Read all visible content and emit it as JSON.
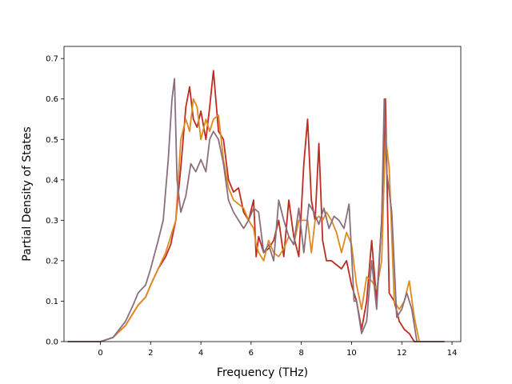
{
  "chart_data": {
    "type": "line",
    "title": "",
    "xlabel": "Frequency (THz)",
    "ylabel": "Partial Density of States",
    "xlim": [
      -1.45,
      14.35
    ],
    "ylim": [
      0.0,
      0.73
    ],
    "xticks": [
      0,
      2,
      4,
      6,
      8,
      10,
      12,
      14
    ],
    "yticks": [
      0.0,
      0.1,
      0.2,
      0.3,
      0.4,
      0.5,
      0.6,
      0.7
    ],
    "grid": false,
    "legend": "none",
    "series": [
      {
        "color": "#bf2b22",
        "x": [
          -1.3,
          0,
          0.5,
          1.0,
          1.3,
          1.5,
          1.8,
          2.0,
          2.3,
          2.6,
          2.8,
          3.0,
          3.2,
          3.4,
          3.55,
          3.7,
          3.85,
          4.0,
          4.2,
          4.35,
          4.5,
          4.7,
          4.9,
          5.1,
          5.3,
          5.5,
          5.7,
          5.9,
          6.1,
          6.2,
          6.3,
          6.5,
          6.7,
          6.9,
          7.1,
          7.3,
          7.5,
          7.7,
          7.9,
          8.1,
          8.25,
          8.4,
          8.55,
          8.7,
          8.85,
          9.0,
          9.2,
          9.4,
          9.6,
          9.8,
          10.0,
          10.2,
          10.4,
          10.6,
          10.8,
          11.0,
          11.2,
          11.35,
          11.5,
          11.7,
          11.9,
          12.1,
          12.3,
          12.5,
          12.7,
          13.0,
          13.7
        ],
        "y": [
          0,
          0,
          0.01,
          0.04,
          0.07,
          0.09,
          0.11,
          0.14,
          0.18,
          0.21,
          0.24,
          0.3,
          0.43,
          0.58,
          0.63,
          0.55,
          0.53,
          0.57,
          0.5,
          0.58,
          0.67,
          0.52,
          0.5,
          0.4,
          0.37,
          0.38,
          0.32,
          0.3,
          0.35,
          0.21,
          0.26,
          0.22,
          0.23,
          0.25,
          0.3,
          0.21,
          0.35,
          0.26,
          0.21,
          0.44,
          0.55,
          0.35,
          0.3,
          0.49,
          0.25,
          0.2,
          0.2,
          0.19,
          0.18,
          0.2,
          0.14,
          0.1,
          0.03,
          0.1,
          0.25,
          0.1,
          0.3,
          0.6,
          0.12,
          0.1,
          0.05,
          0.03,
          0.02,
          0.0,
          0,
          0,
          0
        ]
      },
      {
        "color": "#e08a1e",
        "x": [
          -1.3,
          0,
          0.5,
          1.0,
          1.3,
          1.5,
          1.8,
          2.0,
          2.3,
          2.6,
          2.8,
          3.0,
          3.2,
          3.4,
          3.55,
          3.7,
          3.85,
          4.0,
          4.2,
          4.35,
          4.5,
          4.7,
          4.9,
          5.1,
          5.3,
          5.5,
          5.7,
          5.9,
          6.1,
          6.2,
          6.3,
          6.5,
          6.7,
          6.9,
          7.1,
          7.3,
          7.5,
          7.7,
          7.9,
          8.1,
          8.25,
          8.4,
          8.55,
          8.7,
          8.85,
          9.0,
          9.2,
          9.4,
          9.6,
          9.8,
          10.0,
          10.2,
          10.4,
          10.6,
          10.8,
          11.0,
          11.2,
          11.35,
          11.5,
          11.7,
          11.9,
          12.1,
          12.3,
          12.5,
          12.7,
          13.0,
          13.7
        ],
        "y": [
          0,
          0,
          0.01,
          0.04,
          0.07,
          0.09,
          0.11,
          0.14,
          0.18,
          0.22,
          0.26,
          0.3,
          0.5,
          0.55,
          0.52,
          0.6,
          0.58,
          0.5,
          0.55,
          0.52,
          0.55,
          0.56,
          0.45,
          0.38,
          0.35,
          0.34,
          0.33,
          0.3,
          0.28,
          0.24,
          0.22,
          0.2,
          0.25,
          0.22,
          0.21,
          0.23,
          0.26,
          0.24,
          0.3,
          0.3,
          0.3,
          0.22,
          0.3,
          0.31,
          0.3,
          0.32,
          0.3,
          0.27,
          0.22,
          0.27,
          0.24,
          0.14,
          0.08,
          0.16,
          0.15,
          0.13,
          0.2,
          0.51,
          0.43,
          0.1,
          0.08,
          0.1,
          0.15,
          0.06,
          0,
          0,
          0
        ]
      },
      {
        "color": "#8a6f7e",
        "x": [
          -1.3,
          0,
          0.5,
          1.0,
          1.3,
          1.5,
          1.8,
          2.0,
          2.3,
          2.5,
          2.7,
          2.85,
          2.95,
          3.05,
          3.2,
          3.4,
          3.6,
          3.8,
          4.0,
          4.2,
          4.35,
          4.5,
          4.7,
          4.9,
          5.1,
          5.3,
          5.5,
          5.7,
          5.9,
          6.1,
          6.3,
          6.5,
          6.7,
          6.9,
          7.1,
          7.3,
          7.5,
          7.7,
          7.9,
          8.1,
          8.3,
          8.5,
          8.7,
          8.9,
          9.1,
          9.3,
          9.5,
          9.7,
          9.9,
          10.1,
          10.2,
          10.4,
          10.6,
          10.8,
          11.0,
          11.2,
          11.3,
          11.4,
          11.6,
          11.8,
          12.0,
          12.2,
          12.4,
          12.6,
          12.8,
          13.0,
          13.7
        ],
        "y": [
          0,
          0,
          0.01,
          0.05,
          0.09,
          0.12,
          0.14,
          0.18,
          0.25,
          0.3,
          0.45,
          0.6,
          0.65,
          0.4,
          0.32,
          0.36,
          0.44,
          0.42,
          0.45,
          0.42,
          0.5,
          0.52,
          0.5,
          0.44,
          0.35,
          0.32,
          0.3,
          0.28,
          0.3,
          0.33,
          0.32,
          0.22,
          0.24,
          0.2,
          0.35,
          0.3,
          0.26,
          0.24,
          0.33,
          0.22,
          0.34,
          0.32,
          0.29,
          0.33,
          0.28,
          0.31,
          0.3,
          0.28,
          0.34,
          0.1,
          0.1,
          0.02,
          0.05,
          0.2,
          0.08,
          0.3,
          0.6,
          0.42,
          0.32,
          0.06,
          0.08,
          0.12,
          0.08,
          0.0,
          0,
          0,
          0
        ]
      }
    ]
  }
}
